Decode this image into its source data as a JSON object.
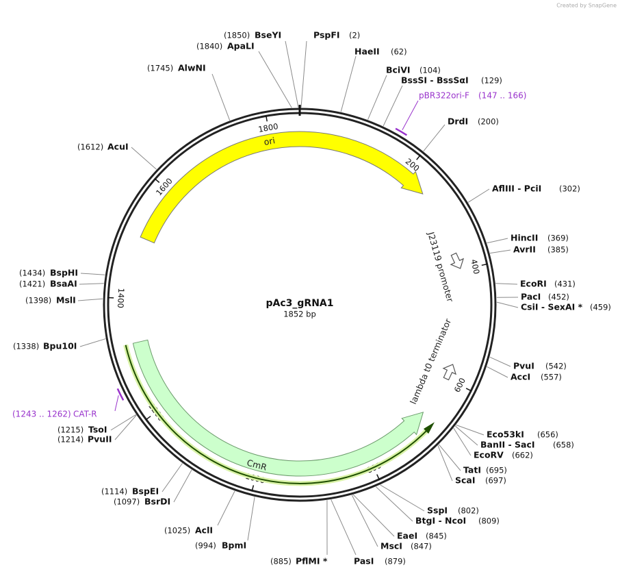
{
  "map": {
    "name": "pAc3_gRNA1",
    "size": {
      "value": 1852,
      "label": "1852 bp"
    },
    "credit": "Created by SnapGene",
    "ticks": [
      200,
      400,
      600,
      800,
      1000,
      1200,
      1400,
      1600,
      1800
    ],
    "enzymes": [
      {
        "label": "BseYI",
        "site": 1850,
        "site_label": "(1850)"
      },
      {
        "label": "ApaLI",
        "site": 1840,
        "site_label": "(1840)"
      },
      {
        "label": "PspFI",
        "site": 2,
        "site_label": "(2)"
      },
      {
        "label": "HaeII",
        "site": 62,
        "site_label": "(62)"
      },
      {
        "label": "AlwNI",
        "site": 1745,
        "site_label": "(1745)"
      },
      {
        "label": "BciVI",
        "site": 104,
        "site_label": "(104)"
      },
      {
        "label": "BssSI - BssSαI",
        "site": 129,
        "site_label": "(129)"
      },
      {
        "label": "DrdI",
        "site": 200,
        "site_label": "(200)"
      },
      {
        "label": "AcuI",
        "site": 1612,
        "site_label": "(1612)"
      },
      {
        "label": "AflIII - PciI",
        "site": 302,
        "site_label": "(302)"
      },
      {
        "label": "HincII",
        "site": 369,
        "site_label": "(369)"
      },
      {
        "label": "AvrII",
        "site": 385,
        "site_label": "(385)"
      },
      {
        "label": "EcoRI",
        "site": 431,
        "site_label": "(431)"
      },
      {
        "label": "PacI",
        "site": 452,
        "site_label": "(452)"
      },
      {
        "label": "CsiI - SexAI *",
        "site": 459,
        "site_label": "(459)"
      },
      {
        "label": "BspHI",
        "site": 1434,
        "site_label": "(1434)"
      },
      {
        "label": "BsaAI",
        "site": 1421,
        "site_label": "(1421)"
      },
      {
        "label": "MslI",
        "site": 1398,
        "site_label": "(1398)"
      },
      {
        "label": "Bpu10I",
        "site": 1338,
        "site_label": "(1338)"
      },
      {
        "label": "PvuI",
        "site": 542,
        "site_label": "(542)"
      },
      {
        "label": "AccI",
        "site": 557,
        "site_label": "(557)"
      },
      {
        "label": "Eco53kI",
        "site": 656,
        "site_label": "(656)"
      },
      {
        "label": "BanII - SacI",
        "site": 658,
        "site_label": "(658)"
      },
      {
        "label": "EcoRV",
        "site": 662,
        "site_label": "(662)"
      },
      {
        "label": "TatI",
        "site": 695,
        "site_label": "(695)"
      },
      {
        "label": "ScaI",
        "site": 697,
        "site_label": "(697)"
      },
      {
        "label": "SspI",
        "site": 802,
        "site_label": "(802)"
      },
      {
        "label": "BtgI - NcoI",
        "site": 809,
        "site_label": "(809)"
      },
      {
        "label": "EaeI",
        "site": 845,
        "site_label": "(845)"
      },
      {
        "label": "MscI",
        "site": 847,
        "site_label": "(847)"
      },
      {
        "label": "PasI",
        "site": 879,
        "site_label": "(879)"
      },
      {
        "label": "PflMI *",
        "site": 885,
        "site_label": "(885)"
      },
      {
        "label": "BpmI",
        "site": 994,
        "site_label": "(994)"
      },
      {
        "label": "AclI",
        "site": 1025,
        "site_label": "(1025)"
      },
      {
        "label": "BspEI",
        "site": 1114,
        "site_label": "(1114)"
      },
      {
        "label": "BsrDI",
        "site": 1097,
        "site_label": "(1097)"
      },
      {
        "label": "TsoI",
        "site": 1215,
        "site_label": "(1215)"
      },
      {
        "label": "PvuII",
        "site": 1214,
        "site_label": "(1214)"
      }
    ],
    "features": [
      {
        "name": "ori"
      },
      {
        "name": "CmR"
      },
      {
        "name": "J23119 promoter"
      },
      {
        "name": "lambda t0 terminator"
      }
    ],
    "primers": [
      {
        "name": "pBR322ori-F",
        "start": 147,
        "end": 166,
        "range_label": "(147 .. 166)"
      },
      {
        "name": "CAT-R",
        "start": 1243,
        "end": 1262,
        "range_label": "(1243 .. 1262)"
      }
    ]
  }
}
